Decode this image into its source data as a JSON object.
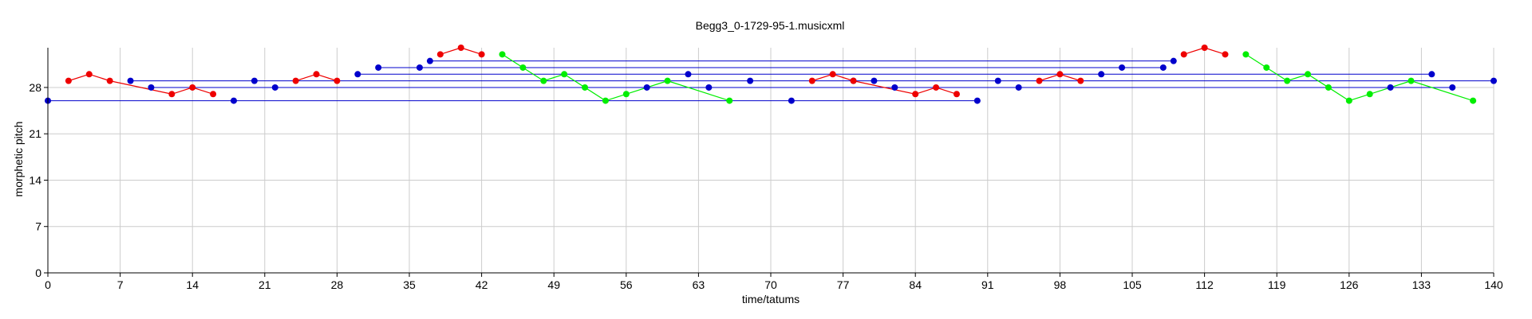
{
  "chart_data": {
    "type": "scatter",
    "title": "Begg3_0-1729-95-1.musicxml",
    "xlabel": "time/tatums",
    "ylabel": "morphetic pitch",
    "xlim": [
      0,
      140
    ],
    "ylim": [
      0,
      34
    ],
    "xticks": [
      0,
      7,
      14,
      21,
      28,
      35,
      42,
      49,
      56,
      63,
      70,
      77,
      84,
      91,
      98,
      105,
      112,
      119,
      126,
      133,
      140
    ],
    "yticks": [
      0,
      7,
      14,
      21,
      28
    ],
    "grid": true,
    "colors": {
      "blue": "#0000cc",
      "red": "#ee0000",
      "green": "#00ee00"
    },
    "series": [
      {
        "color": "blue",
        "x": [
          0,
          8,
          10,
          18,
          20,
          22,
          30,
          32,
          36,
          37,
          58,
          62,
          64,
          68,
          72,
          78,
          80,
          82,
          90,
          92,
          94,
          102,
          104,
          108,
          109,
          130,
          134,
          136,
          140
        ],
        "y": [
          26,
          29,
          28,
          26,
          29,
          28,
          30,
          31,
          31,
          32,
          28,
          30,
          28,
          29,
          26,
          29,
          29,
          28,
          26,
          29,
          28,
          30,
          31,
          31,
          32,
          28,
          30,
          28,
          29
        ]
      },
      {
        "color": "red",
        "x": [
          2,
          4,
          6,
          12,
          14,
          16,
          24,
          26,
          28,
          38,
          40,
          42,
          74,
          76,
          78,
          84,
          86,
          88,
          96,
          98,
          100,
          110,
          112,
          114
        ],
        "y": [
          29,
          30,
          29,
          27,
          28,
          27,
          29,
          30,
          29,
          33,
          34,
          33,
          29,
          30,
          29,
          27,
          28,
          27,
          29,
          30,
          29,
          33,
          34,
          33
        ]
      },
      {
        "color": "green",
        "x": [
          44,
          46,
          48,
          50,
          52,
          54,
          56,
          60,
          66,
          116,
          118,
          120,
          122,
          124,
          126,
          128,
          132,
          138
        ],
        "y": [
          33,
          31,
          29,
          30,
          28,
          26,
          27,
          29,
          26,
          33,
          31,
          29,
          30,
          28,
          26,
          27,
          29,
          26
        ]
      }
    ]
  }
}
